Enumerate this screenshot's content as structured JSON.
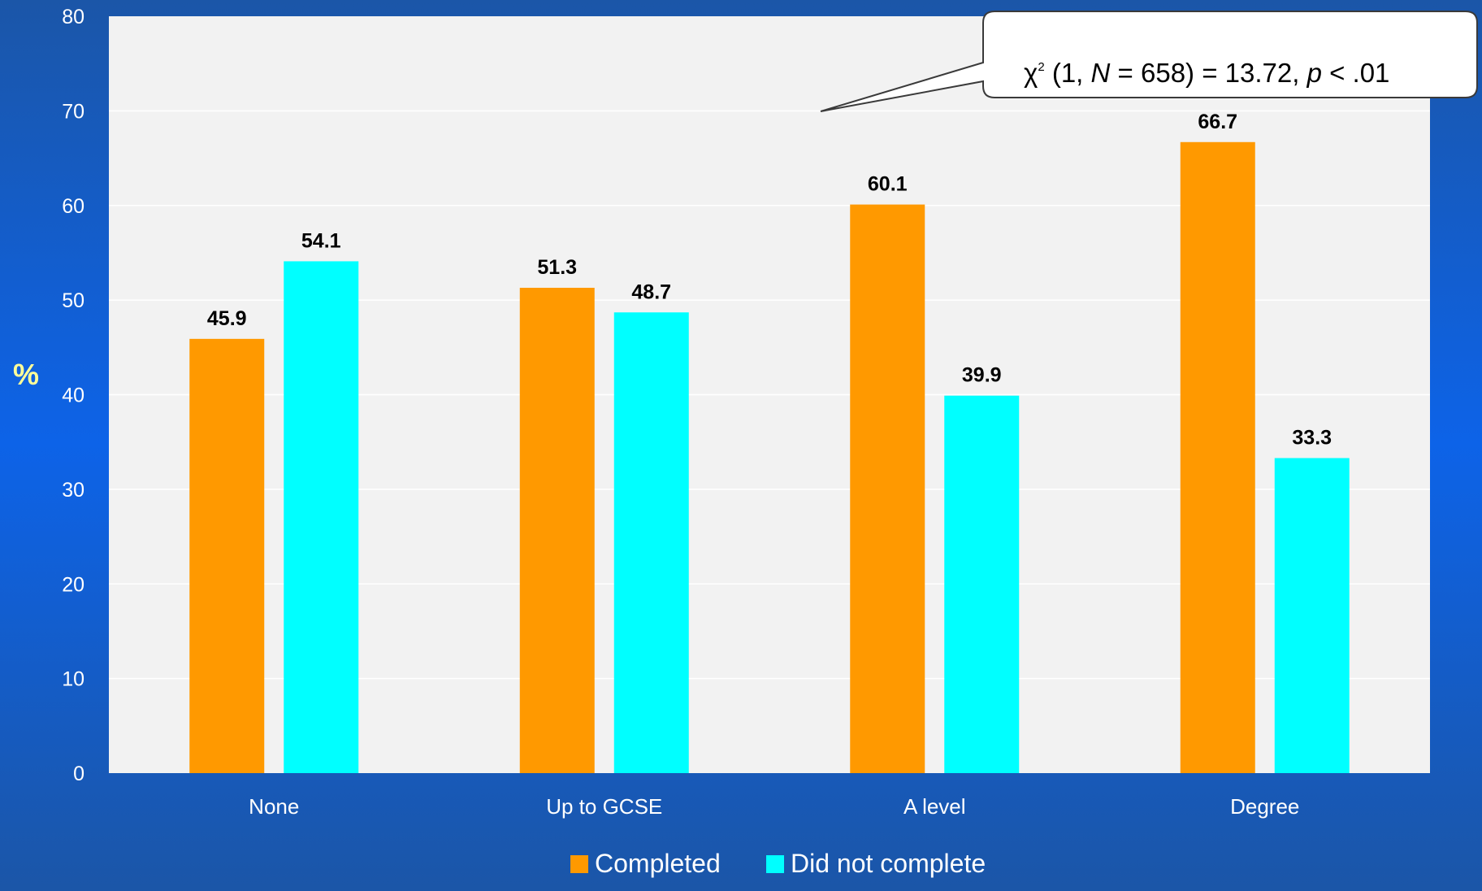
{
  "chart_data": {
    "type": "bar",
    "categories": [
      "None",
      "Up to GCSE",
      "A level",
      "Degree"
    ],
    "series": [
      {
        "name": "Completed",
        "color": "#FF9900",
        "values": [
          45.9,
          51.3,
          60.1,
          66.7
        ]
      },
      {
        "name": "Did not complete",
        "color": "#00FFFF",
        "values": [
          54.1,
          48.7,
          39.9,
          33.3
        ]
      }
    ],
    "ylabel": "%",
    "ylim": [
      0,
      80
    ],
    "yticks": [
      0,
      10,
      20,
      30,
      40,
      50,
      60,
      70,
      80
    ],
    "grid": true,
    "legend_position": "bottom",
    "annotation": {
      "chi": "χ",
      "sup": "2",
      "part1": " (1, ",
      "n_symbol": "N",
      "part2": " = 658) = 13.72, ",
      "p_symbol": "p",
      "part3": " < .01"
    },
    "colors": {
      "plot_background": "#F2F2F2",
      "axis_text": "#FFFFFF",
      "ylabel_color": "#FFFF99",
      "data_label": "#000000"
    }
  }
}
